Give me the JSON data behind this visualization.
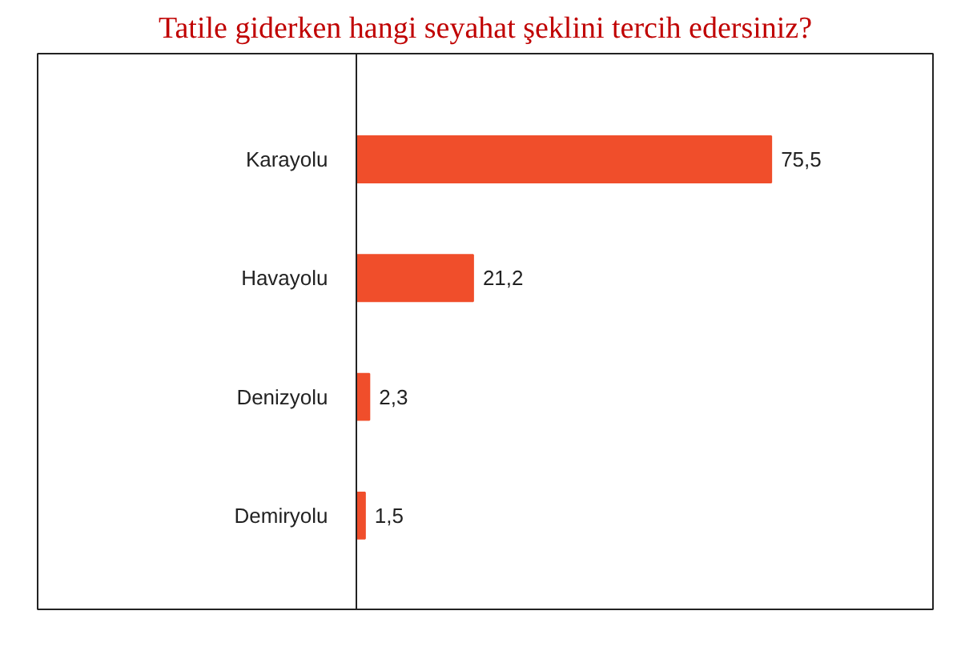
{
  "chart_data": {
    "type": "bar",
    "orientation": "horizontal",
    "title": "Tatile giderken hangi seyahat şeklini tercih edersiniz?",
    "categories": [
      "Karayolu",
      "Havayolu",
      "Denizyolu",
      "Demiryolu"
    ],
    "values": [
      75.5,
      21.2,
      2.3,
      1.5
    ],
    "value_labels": [
      "75,5",
      "21,2",
      "2,3",
      "1,5"
    ],
    "color": "#f04e2b",
    "grid": false
  }
}
